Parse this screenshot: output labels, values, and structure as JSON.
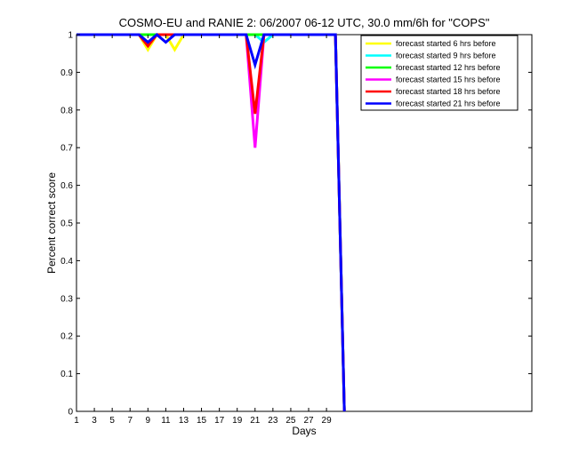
{
  "chart_data": {
    "type": "line",
    "title": "COSMO-EU and RANIE 2: 06/2007 06-12 UTC, 30.0 mm/6h for \"COPS\"",
    "xlabel": "Days",
    "ylabel": "Percent correct score",
    "xlim": [
      1,
      52
    ],
    "ylim": [
      0,
      1
    ],
    "x_ticks": [
      1,
      3,
      5,
      7,
      9,
      11,
      13,
      15,
      17,
      19,
      21,
      23,
      25,
      27,
      29
    ],
    "y_ticks": [
      0,
      0.1,
      0.2,
      0.3,
      0.4,
      0.5,
      0.6,
      0.7,
      0.8,
      0.9,
      1
    ],
    "y_tick_labels": [
      "0",
      "0.1",
      "0.2",
      "0.3",
      "0.4",
      "0.5",
      "0.6",
      "0.7",
      "0.8",
      "0.9",
      "1"
    ],
    "legend_position": "top-right",
    "grid": false,
    "x": [
      1,
      2,
      3,
      4,
      5,
      6,
      7,
      8,
      9,
      10,
      11,
      12,
      13,
      14,
      15,
      16,
      17,
      18,
      19,
      20,
      21,
      22,
      23,
      24,
      25,
      26,
      27,
      28,
      29,
      30,
      31
    ],
    "series": [
      {
        "name": "forecast started 6 hrs before",
        "color": "#ffff00",
        "values": [
          1,
          1,
          1,
          1,
          1,
          1,
          1,
          1,
          0.96,
          1,
          1,
          0.96,
          1,
          1,
          1,
          1,
          1,
          1,
          1,
          1,
          1,
          1,
          1,
          1,
          1,
          1,
          1,
          1,
          1,
          1,
          0
        ]
      },
      {
        "name": "forecast started 9 hrs before",
        "color": "#00ffff",
        "values": [
          1,
          1,
          1,
          1,
          1,
          1,
          1,
          1,
          0.98,
          1,
          1,
          1,
          1,
          1,
          1,
          1,
          1,
          1,
          1,
          1,
          1,
          0.98,
          1,
          1,
          1,
          1,
          1,
          1,
          1,
          1,
          0
        ]
      },
      {
        "name": "forecast started 12 hrs before",
        "color": "#00ff00",
        "values": [
          1,
          1,
          1,
          1,
          1,
          1,
          1,
          1,
          1,
          1,
          1,
          1,
          1,
          1,
          1,
          1,
          1,
          1,
          1,
          1,
          1,
          1,
          1,
          1,
          1,
          1,
          1,
          1,
          1,
          1,
          0
        ]
      },
      {
        "name": "forecast started 15 hrs before",
        "color": "#ff00ff",
        "values": [
          1,
          1,
          1,
          1,
          1,
          1,
          1,
          1,
          0.97,
          1,
          1,
          1,
          1,
          1,
          1,
          1,
          1,
          1,
          1,
          1,
          0.7,
          1,
          1,
          1,
          1,
          1,
          1,
          1,
          1,
          1,
          0
        ]
      },
      {
        "name": "forecast started 18 hrs before",
        "color": "#ff0000",
        "values": [
          1,
          1,
          1,
          1,
          1,
          1,
          1,
          1,
          0.97,
          1,
          1,
          1,
          1,
          1,
          1,
          1,
          1,
          1,
          1,
          1,
          0.79,
          1,
          1,
          1,
          1,
          1,
          1,
          1,
          1,
          1,
          0
        ]
      },
      {
        "name": "forecast started 21 hrs before",
        "color": "#0000ff",
        "values": [
          1,
          1,
          1,
          1,
          1,
          1,
          1,
          1,
          0.98,
          1,
          0.98,
          1,
          1,
          1,
          1,
          1,
          1,
          1,
          1,
          1,
          0.92,
          1,
          1,
          1,
          1,
          1,
          1,
          1,
          1,
          1,
          0
        ]
      }
    ]
  }
}
